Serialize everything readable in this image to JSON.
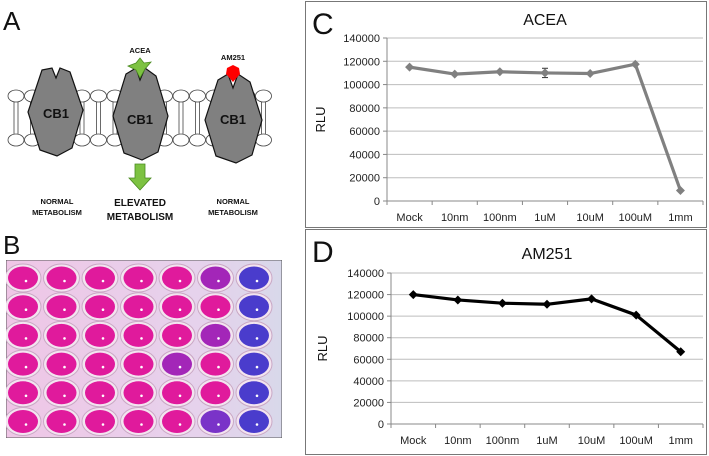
{
  "panel_a": {
    "letter": "A",
    "receptor_label": "CB1",
    "agonist_label": "ACEA",
    "antagonist_label": "AM251",
    "left_caption": [
      "NORMAL",
      "METABOLISM"
    ],
    "center_caption": [
      "ELEVATED",
      "METABOLISM"
    ],
    "right_caption": [
      "NORMAL",
      "METABOLISM"
    ],
    "colors": {
      "receptor": "#808080",
      "agonist": "#7dc242",
      "antagonist": "#ff0000",
      "arrow": "#7dc242"
    }
  },
  "panel_b": {
    "letter": "B",
    "wells": [
      [
        "pink",
        "pink",
        "pink",
        "pink",
        "pink",
        "purple",
        "blue"
      ],
      [
        "pink",
        "pink",
        "pink",
        "pink",
        "pink",
        "pink",
        "blue"
      ],
      [
        "pink",
        "pink",
        "pink",
        "pink",
        "pink",
        "purple",
        "blue"
      ],
      [
        "pink",
        "pink",
        "pink",
        "pink",
        "purple",
        "pink",
        "blue"
      ],
      [
        "pink",
        "pink",
        "pink",
        "pink",
        "pink",
        "pink",
        "blue"
      ],
      [
        "pink",
        "pink",
        "pink",
        "pink",
        "pink",
        "violet",
        "blue"
      ]
    ],
    "colors": {
      "pink": "#e01a9c",
      "purple": "#a326b8",
      "violet": "#7a33c8",
      "blue": "#4a3ccc"
    }
  },
  "chart_data": [
    {
      "letter": "C",
      "type": "line",
      "title": "ACEA",
      "xlabel": "",
      "ylabel": "RLU",
      "categories": [
        "Mock",
        "10nm",
        "100nm",
        "1uM",
        "10uM",
        "100uM",
        "1mm"
      ],
      "values": [
        115000,
        109000,
        111000,
        110000,
        109500,
        117500,
        9000
      ],
      "error": [
        0,
        0,
        0,
        4000,
        0,
        0,
        0
      ],
      "ylim": [
        0,
        140000
      ],
      "yticks": [
        0,
        20000,
        40000,
        60000,
        80000,
        100000,
        120000,
        140000
      ],
      "grid": true,
      "legend": "none",
      "color": "#808080"
    },
    {
      "letter": "D",
      "type": "line",
      "title": "AM251",
      "xlabel": "",
      "ylabel": "RLU",
      "categories": [
        "Mock",
        "10nm",
        "100nm",
        "1uM",
        "10uM",
        "100uM",
        "1mm"
      ],
      "values": [
        120000,
        115000,
        112000,
        111000,
        116000,
        101000,
        67000
      ],
      "ylim": [
        0,
        140000
      ],
      "yticks": [
        0,
        20000,
        40000,
        60000,
        80000,
        100000,
        120000,
        140000
      ],
      "grid": true,
      "legend": "none",
      "color": "#000000"
    }
  ]
}
